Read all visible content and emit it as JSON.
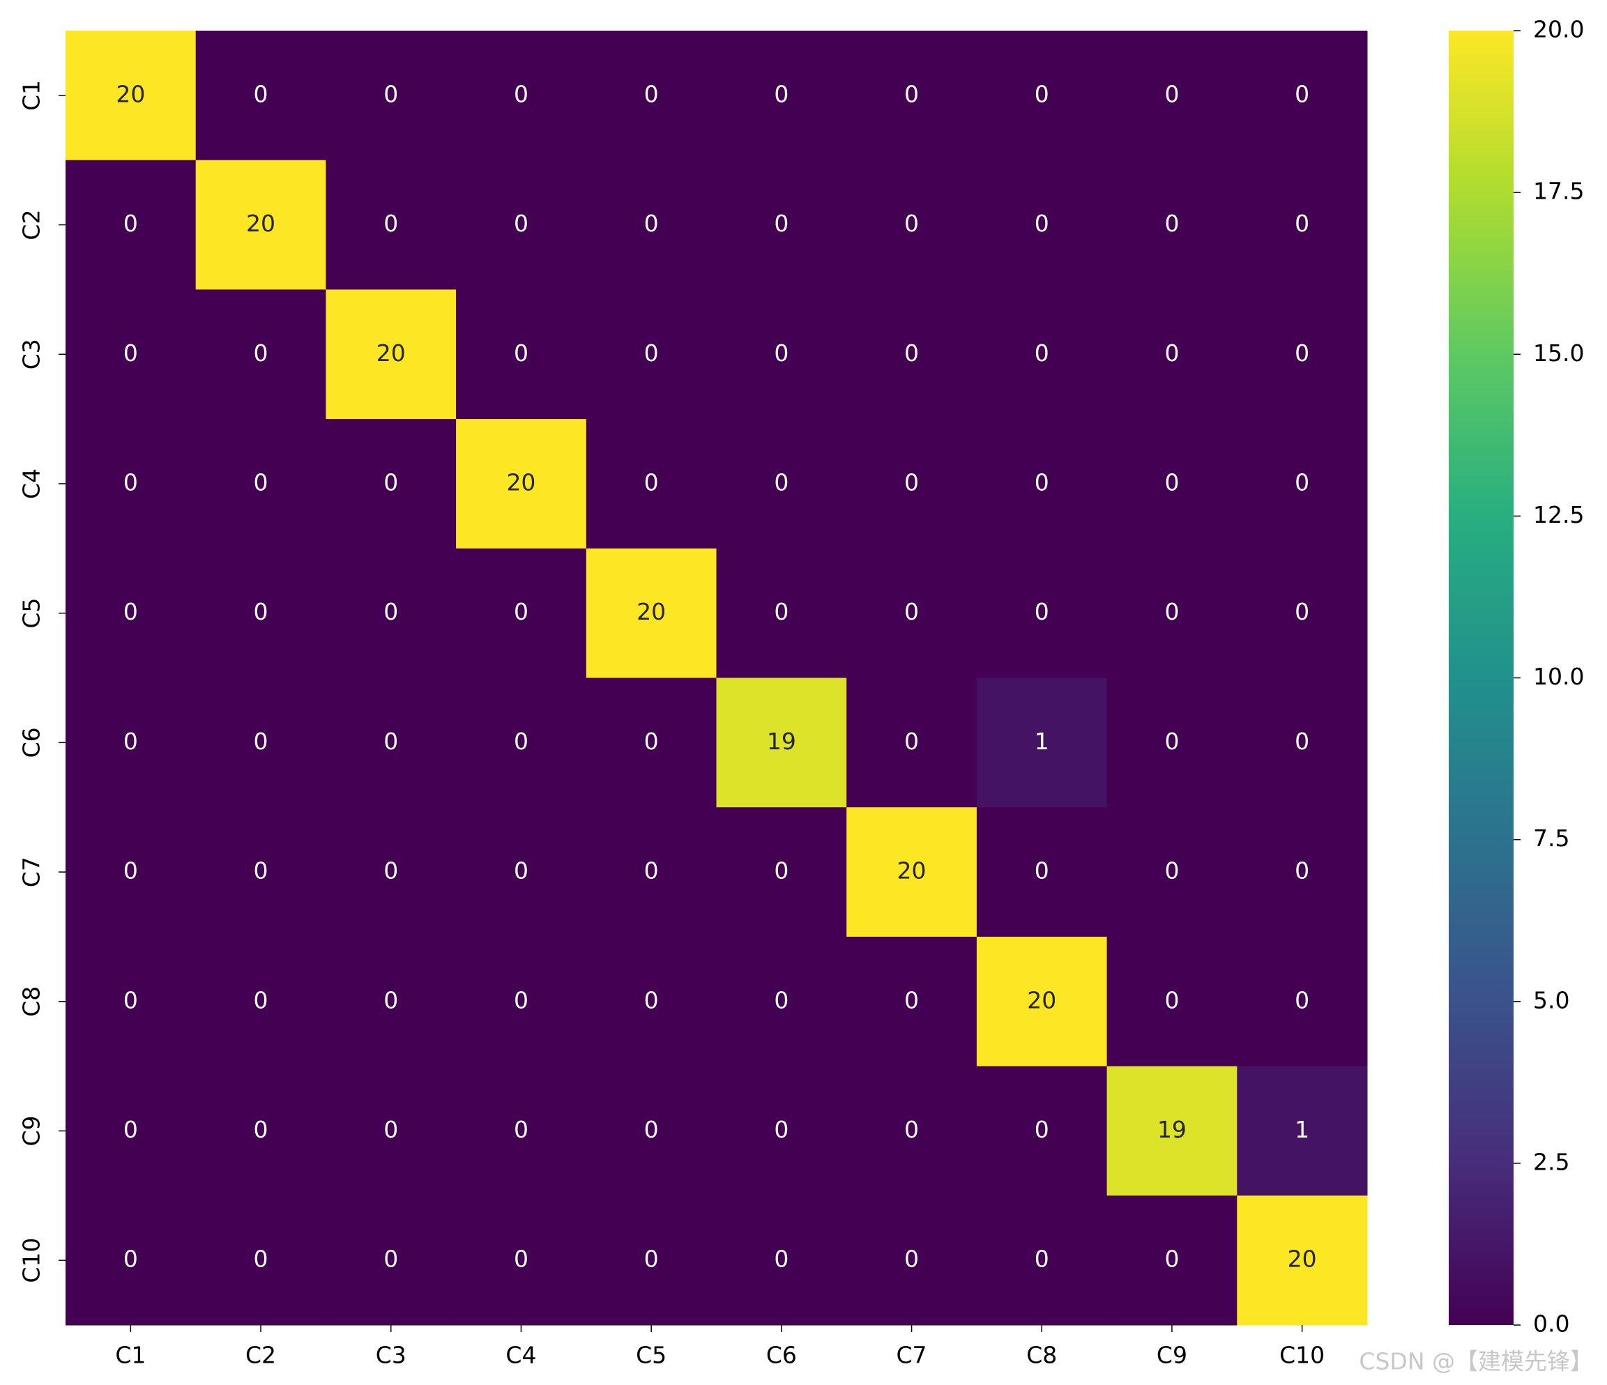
{
  "chart_data": {
    "type": "heatmap",
    "x_categories": [
      "C1",
      "C2",
      "C3",
      "C4",
      "C5",
      "C6",
      "C7",
      "C8",
      "C9",
      "C10"
    ],
    "y_categories": [
      "C1",
      "C2",
      "C3",
      "C4",
      "C5",
      "C6",
      "C7",
      "C8",
      "C9",
      "C10"
    ],
    "values": [
      [
        20,
        0,
        0,
        0,
        0,
        0,
        0,
        0,
        0,
        0
      ],
      [
        0,
        20,
        0,
        0,
        0,
        0,
        0,
        0,
        0,
        0
      ],
      [
        0,
        0,
        20,
        0,
        0,
        0,
        0,
        0,
        0,
        0
      ],
      [
        0,
        0,
        0,
        20,
        0,
        0,
        0,
        0,
        0,
        0
      ],
      [
        0,
        0,
        0,
        0,
        20,
        0,
        0,
        0,
        0,
        0
      ],
      [
        0,
        0,
        0,
        0,
        0,
        19,
        0,
        1,
        0,
        0
      ],
      [
        0,
        0,
        0,
        0,
        0,
        0,
        20,
        0,
        0,
        0
      ],
      [
        0,
        0,
        0,
        0,
        0,
        0,
        0,
        20,
        0,
        0
      ],
      [
        0,
        0,
        0,
        0,
        0,
        0,
        0,
        0,
        19,
        1
      ],
      [
        0,
        0,
        0,
        0,
        0,
        0,
        0,
        0,
        0,
        20
      ]
    ],
    "colormap": "viridis",
    "clim": [
      0,
      20
    ],
    "cticks": [
      {
        "value": 0,
        "label": "0.0"
      },
      2.5,
      {
        "value": 5,
        "label": "5.0"
      },
      7.5,
      {
        "value": 10,
        "label": "10.0"
      },
      12.5,
      {
        "value": 15,
        "label": "15.0"
      },
      17.5,
      {
        "value": 20,
        "label": "20.0"
      }
    ],
    "watermark": "CSDN @【建模先锋】"
  }
}
